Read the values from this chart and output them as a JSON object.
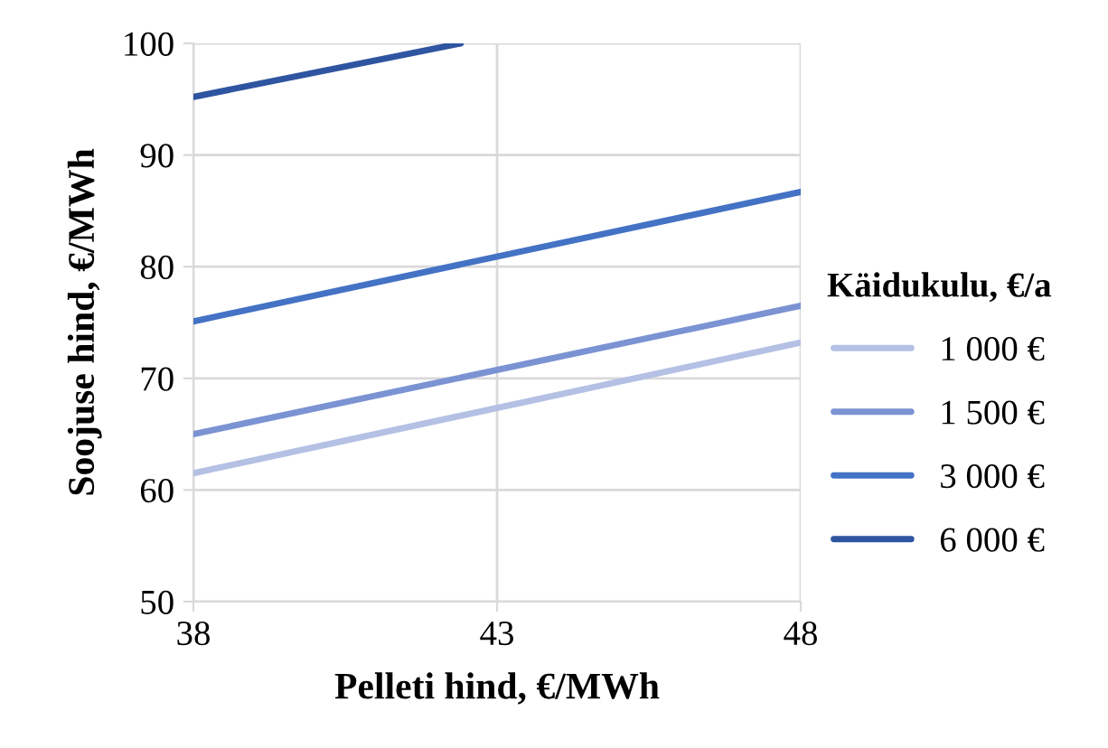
{
  "chart_data": {
    "type": "line",
    "xlabel": "Pelleti hind, €/MWh",
    "ylabel": "Soojuse hind, €/MWh",
    "legend_title": "Käidukulu, €/a",
    "xlim": [
      38,
      48
    ],
    "xticks": [
      38,
      43,
      48
    ],
    "ylim": [
      50,
      100
    ],
    "yticks": [
      50,
      60,
      70,
      80,
      90,
      100
    ],
    "grid": true,
    "legend": "right",
    "series": [
      {
        "name": "1 000 €",
        "color": "#b4c0e4",
        "x": [
          38,
          48
        ],
        "values": [
          61.5,
          73.2
        ]
      },
      {
        "name": "1 500 €",
        "color": "#7b93d3",
        "x": [
          38,
          48
        ],
        "values": [
          65.0,
          76.5
        ]
      },
      {
        "name": "3 000 €",
        "color": "#4472c4",
        "x": [
          38,
          48
        ],
        "values": [
          75.1,
          86.7
        ]
      },
      {
        "name": "6 000 €",
        "color": "#2f55a0",
        "x": [
          38,
          42.4
        ],
        "values": [
          95.2,
          100
        ]
      }
    ]
  }
}
